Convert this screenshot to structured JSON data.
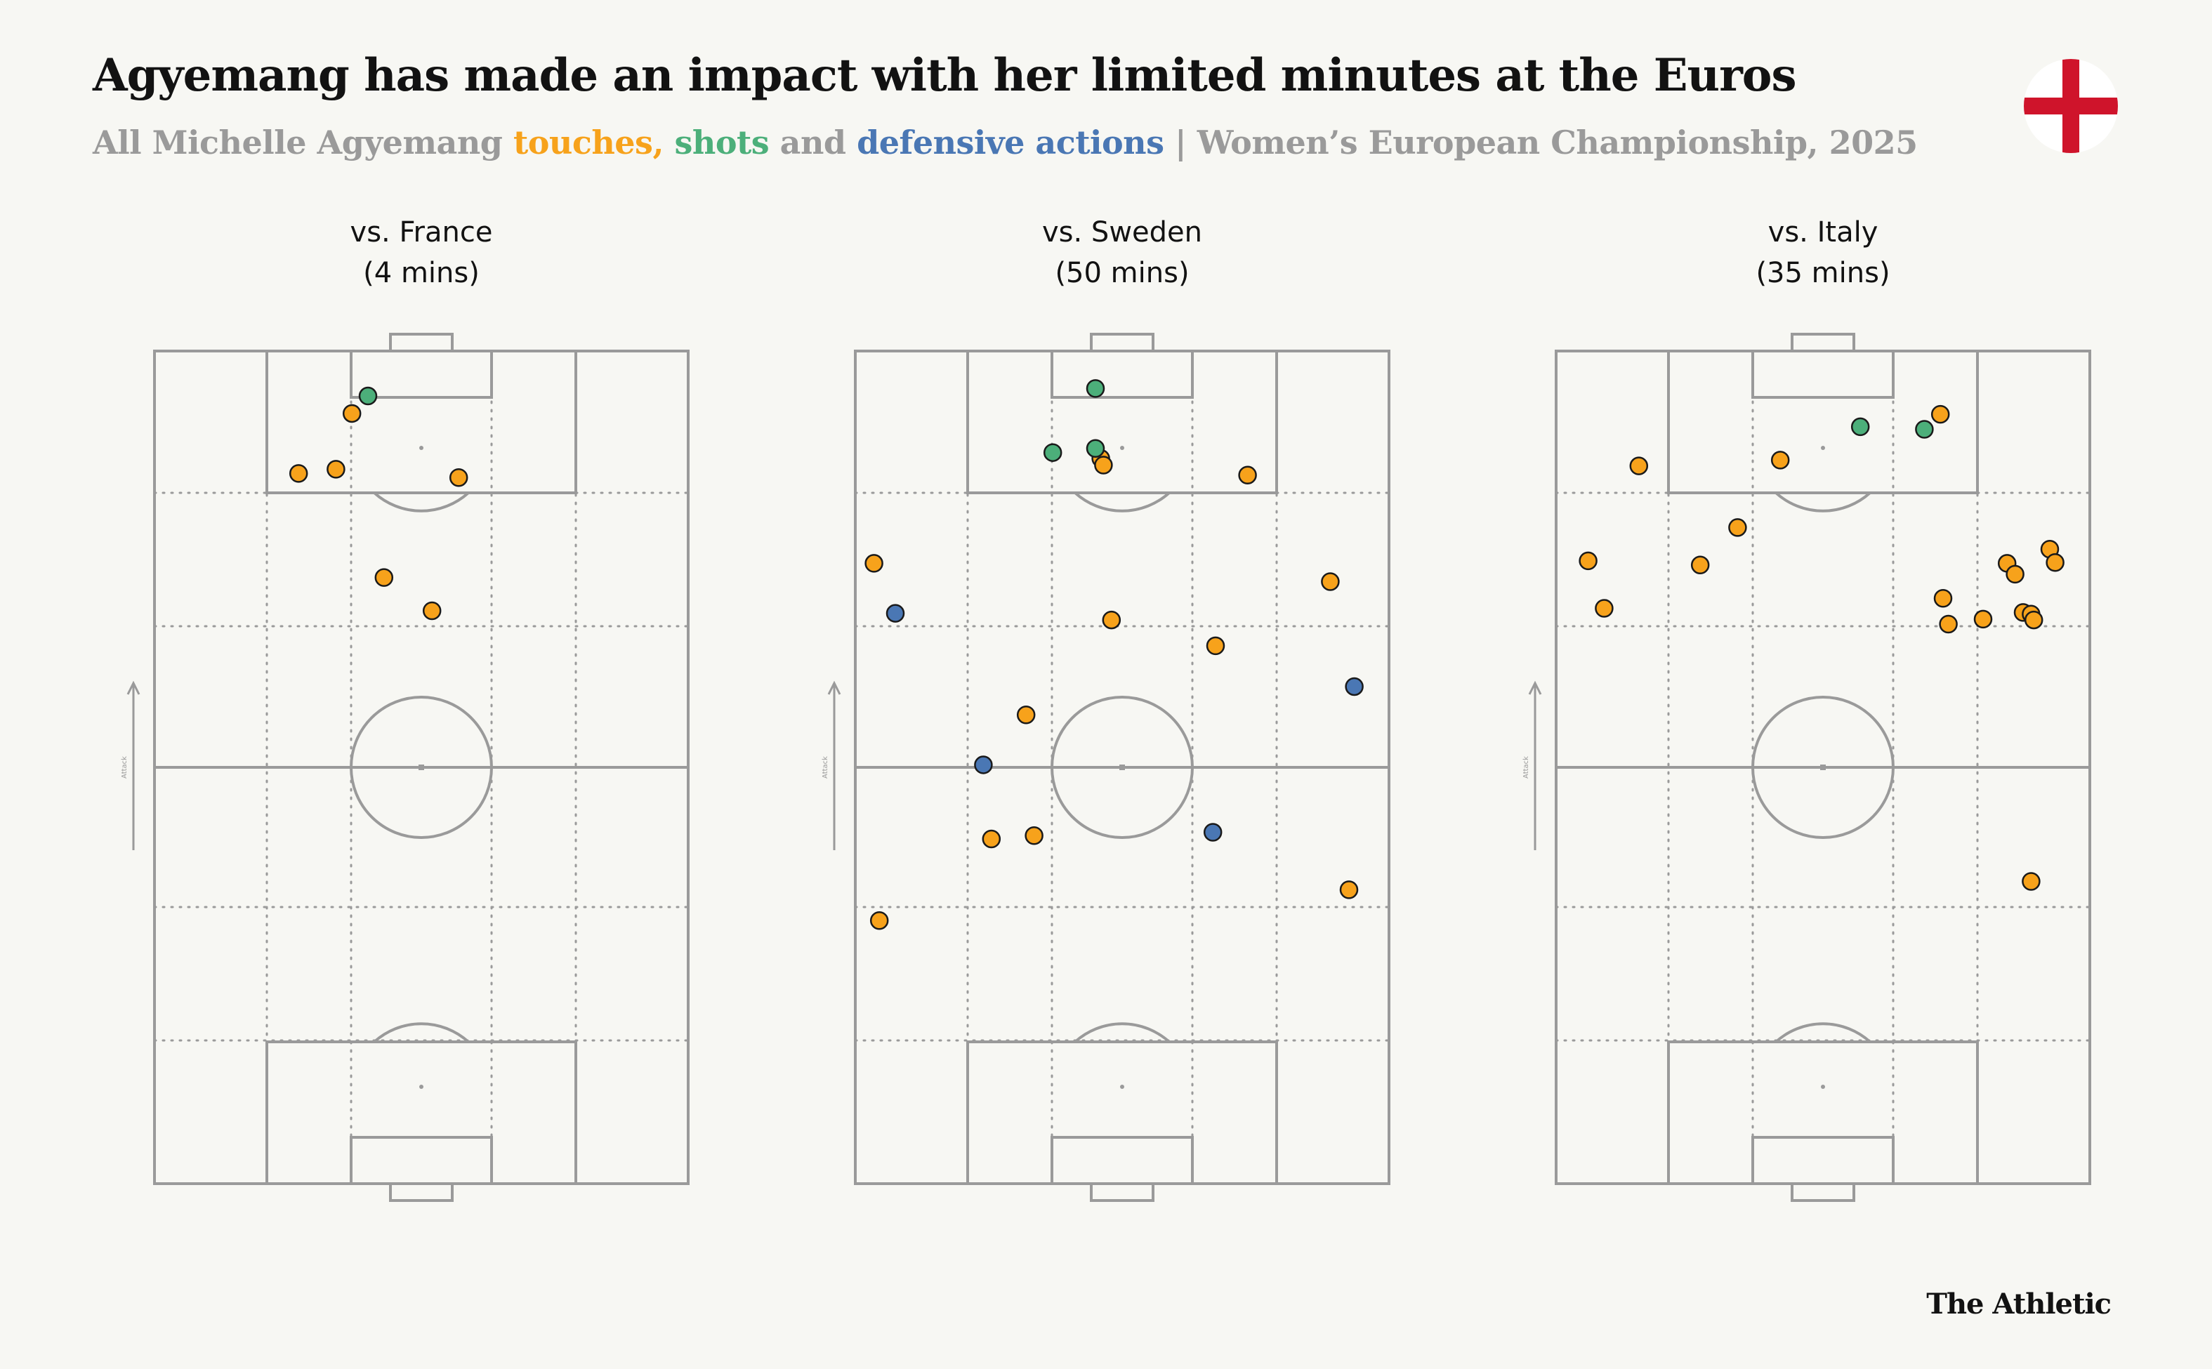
{
  "title": "Agyemang has made an impact with her limited minutes at the Euros",
  "subtitle": {
    "lead": "All Michelle Agyemang ",
    "touches": "touches,",
    "space1": " ",
    "shots": "shots",
    "and": " and ",
    "defensive": "defensive actions",
    "rest": " | Women’s European Championship, 2025"
  },
  "brand": "The Athletic",
  "attack_label": "Attack",
  "colors": {
    "touches": "#f7a21b",
    "shots": "#4caf7a",
    "defensive": "#4a77b4",
    "pitch_line": "#9a9a9a",
    "background": "#f7f7f3",
    "flag_red": "#cf142b"
  },
  "icons": {
    "flag": "england-flag-icon",
    "arrow": "attack-arrow-icon"
  },
  "chart_data": [
    {
      "type": "scatter",
      "title": "vs. France",
      "subtitle": "(4 mins)",
      "x_range": [
        0,
        100
      ],
      "y_range": [
        0,
        100
      ],
      "series": [
        {
          "name": "touches",
          "color": "#f7a21b",
          "points": [
            [
              37,
              92.5
            ],
            [
              27,
              85.3
            ],
            [
              34,
              85.8
            ],
            [
              57,
              84.8
            ],
            [
              43,
              72.8
            ],
            [
              52,
              68.8
            ]
          ]
        },
        {
          "name": "shots",
          "color": "#4caf7a",
          "points": [
            [
              40,
              94.6
            ]
          ]
        },
        {
          "name": "defensive actions",
          "color": "#4a77b4",
          "points": []
        }
      ]
    },
    {
      "type": "scatter",
      "title": "vs. Sweden",
      "subtitle": "(50 mins)",
      "x_range": [
        0,
        100
      ],
      "y_range": [
        0,
        100
      ],
      "series": [
        {
          "name": "touches",
          "color": "#f7a21b",
          "points": [
            [
              46,
              87.1
            ],
            [
              46.5,
              86.3
            ],
            [
              73.5,
              85.1
            ],
            [
              3.5,
              74.5
            ],
            [
              89,
              72.3
            ],
            [
              48,
              67.7
            ],
            [
              67.5,
              64.6
            ],
            [
              32,
              56.3
            ],
            [
              25.5,
              41.4
            ],
            [
              33.5,
              41.8
            ],
            [
              4.5,
              31.6
            ],
            [
              92.5,
              35.3
            ]
          ]
        },
        {
          "name": "shots",
          "color": "#4caf7a",
          "points": [
            [
              45,
              95.5
            ],
            [
              37,
              87.8
            ],
            [
              45,
              88.3
            ]
          ]
        },
        {
          "name": "defensive actions",
          "color": "#4a77b4",
          "points": [
            [
              7.5,
              68.5
            ],
            [
              93.5,
              59.7
            ],
            [
              24,
              50.3
            ],
            [
              67,
              42.2
            ]
          ]
        }
      ]
    },
    {
      "type": "scatter",
      "title": "vs. Italy",
      "subtitle": "(35 mins)",
      "x_range": [
        0,
        100
      ],
      "y_range": [
        0,
        100
      ],
      "series": [
        {
          "name": "touches",
          "color": "#f7a21b",
          "points": [
            [
              72,
              92.4
            ],
            [
              15.5,
              86.2
            ],
            [
              42,
              86.9
            ],
            [
              34,
              78.8
            ],
            [
              6,
              74.8
            ],
            [
              27,
              74.3
            ],
            [
              72.5,
              70.3
            ],
            [
              92.5,
              76.2
            ],
            [
              93.5,
              74.6
            ],
            [
              84.5,
              74.5
            ],
            [
              86,
              73.2
            ],
            [
              9,
              69.1
            ],
            [
              73.5,
              67.2
            ],
            [
              80,
              67.8
            ],
            [
              87.5,
              68.6
            ],
            [
              89,
              68.4
            ],
            [
              89.5,
              67.7
            ],
            [
              89,
              36.3
            ]
          ]
        },
        {
          "name": "shots",
          "color": "#4caf7a",
          "points": [
            [
              57,
              90.9
            ],
            [
              69,
              90.6
            ]
          ]
        },
        {
          "name": "defensive actions",
          "color": "#4a77b4",
          "points": []
        }
      ]
    }
  ]
}
